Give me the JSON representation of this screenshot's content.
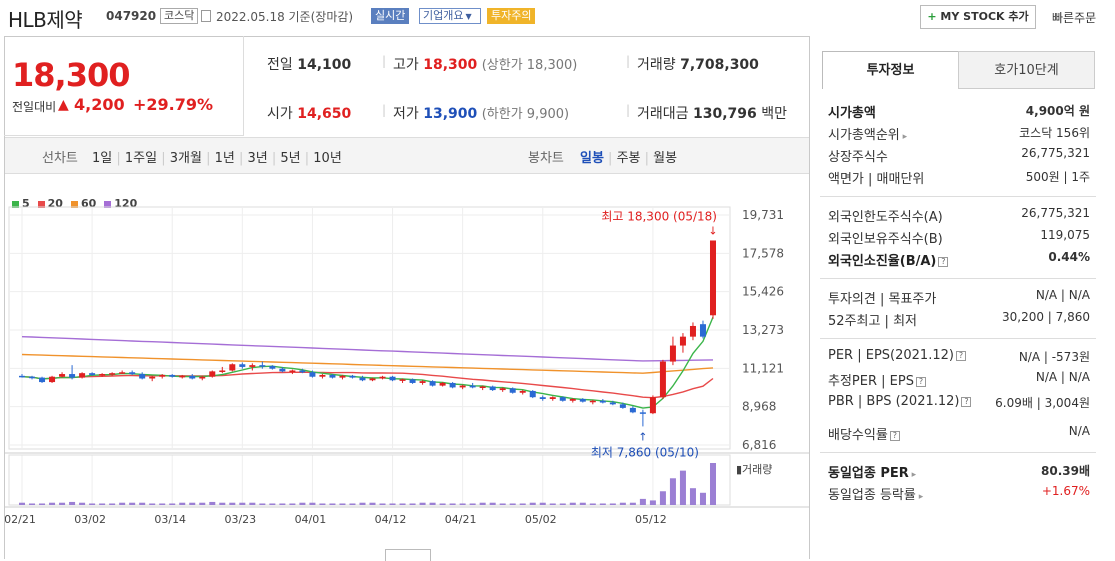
{
  "header": {
    "company_name": "HLB제약",
    "stock_code": "047920",
    "market_tag": "코스닥",
    "date_text": "2022.05.18 기준(장마감)",
    "realtime_tag": "실시간",
    "company_overview_tag": "기업개요",
    "warning_tag": "투자주의",
    "mystock_label": "MY STOCK 추가",
    "quick_order_label": "빠른주문"
  },
  "price": {
    "current": "18,300",
    "change_label": "전일대비",
    "change": "4,200",
    "change_pct": "+29.79%",
    "prev_close_label": "전일",
    "prev_close": "14,100",
    "open_label": "시가",
    "open": "14,650",
    "high_label": "고가",
    "high": "18,300",
    "upper_limit": "(상한가 18,300)",
    "low_label": "저가",
    "low": "13,900",
    "lower_limit": "(하한가 9,900)",
    "volume_label": "거래량",
    "volume": "7,708,300",
    "amount_label": "거래대금",
    "amount": "130,796",
    "amount_unit": "백만"
  },
  "toolbar": {
    "line_chart_label": "선차트",
    "periods": [
      "1일",
      "1주일",
      "3개월",
      "1년",
      "3년",
      "5년",
      "10년"
    ],
    "candle_label": "봉차트",
    "candle_periods": [
      "일봉",
      "주봉",
      "월봉"
    ],
    "selected_candle": "일봉"
  },
  "legend": [
    {
      "label": "5",
      "color": "#3bb54a"
    },
    {
      "label": "20",
      "color": "#e84a4a"
    },
    {
      "label": "60",
      "color": "#f0922b"
    },
    {
      "label": "120",
      "color": "#a56ed6"
    }
  ],
  "chart_data": {
    "type": "candlestick",
    "y_ticks": [
      "19,731",
      "17,578",
      "15,426",
      "13,273",
      "11,121",
      "8,968",
      "6,816"
    ],
    "ylim": [
      6816,
      19731
    ],
    "x_ticks": [
      "02/21",
      "03/02",
      "03/14",
      "03/23",
      "04/01",
      "04/12",
      "04/21",
      "05/02",
      "05/12"
    ],
    "high_annotation": "최고 18,300 (05/18)",
    "low_annotation": "최저 7,860 (05/10)",
    "volume_label": "거래량",
    "up_color": "#e02020",
    "down_color": "#2a6ad4",
    "candles": [
      [
        10700,
        10800,
        10600,
        10650
      ],
      [
        10650,
        10700,
        10500,
        10600
      ],
      [
        10600,
        10650,
        10300,
        10350
      ],
      [
        10350,
        10700,
        10300,
        10650
      ],
      [
        10650,
        10900,
        10600,
        10800
      ],
      [
        10800,
        11300,
        10500,
        10600
      ],
      [
        10600,
        10900,
        10550,
        10850
      ],
      [
        10850,
        10900,
        10700,
        10750
      ],
      [
        10750,
        10850,
        10650,
        10800
      ],
      [
        10800,
        10900,
        10700,
        10850
      ],
      [
        10850,
        11000,
        10800,
        10900
      ],
      [
        10900,
        11000,
        10750,
        10800
      ],
      [
        10800,
        10900,
        10500,
        10550
      ],
      [
        10550,
        10700,
        10400,
        10650
      ],
      [
        10650,
        10800,
        10550,
        10750
      ],
      [
        10750,
        10800,
        10600,
        10650
      ],
      [
        10650,
        10750,
        10550,
        10700
      ],
      [
        10700,
        10800,
        10500,
        10550
      ],
      [
        10550,
        10700,
        10450,
        10650
      ],
      [
        10650,
        11000,
        10600,
        10950
      ],
      [
        10950,
        11200,
        10850,
        11000
      ],
      [
        11000,
        11400,
        10950,
        11350
      ],
      [
        11350,
        11450,
        11100,
        11200
      ],
      [
        11200,
        11400,
        11000,
        11300
      ],
      [
        11300,
        11500,
        11100,
        11250
      ],
      [
        11250,
        11300,
        11050,
        11100
      ],
      [
        11100,
        11200,
        10900,
        10950
      ],
      [
        10950,
        11050,
        10800,
        11000
      ],
      [
        11000,
        11100,
        10850,
        10900
      ],
      [
        10900,
        11000,
        10600,
        10650
      ],
      [
        10650,
        10800,
        10550,
        10750
      ],
      [
        10750,
        10800,
        10550,
        10600
      ],
      [
        10600,
        10750,
        10500,
        10700
      ],
      [
        10700,
        10750,
        10550,
        10600
      ],
      [
        10600,
        10700,
        10400,
        10450
      ],
      [
        10450,
        10600,
        10400,
        10550
      ],
      [
        10550,
        10700,
        10500,
        10650
      ],
      [
        10650,
        10700,
        10400,
        10450
      ],
      [
        10450,
        10550,
        10300,
        10500
      ],
      [
        10500,
        10550,
        10250,
        10300
      ],
      [
        10300,
        10450,
        10200,
        10400
      ],
      [
        10400,
        10450,
        10100,
        10150
      ],
      [
        10150,
        10350,
        10100,
        10300
      ],
      [
        10300,
        10350,
        10000,
        10050
      ],
      [
        10050,
        10200,
        9950,
        10150
      ],
      [
        10150,
        10300,
        10000,
        10050
      ],
      [
        10050,
        10150,
        9900,
        10100
      ],
      [
        10100,
        10150,
        9850,
        9900
      ],
      [
        9900,
        10050,
        9800,
        10000
      ],
      [
        10000,
        10050,
        9700,
        9750
      ],
      [
        9750,
        9900,
        9650,
        9850
      ],
      [
        9850,
        9900,
        9450,
        9500
      ],
      [
        9500,
        9600,
        9300,
        9400
      ],
      [
        9400,
        9550,
        9300,
        9500
      ],
      [
        9500,
        9550,
        9250,
        9300
      ],
      [
        9300,
        9450,
        9200,
        9400
      ],
      [
        9400,
        9450,
        9200,
        9250
      ],
      [
        9250,
        9350,
        9100,
        9300
      ],
      [
        9300,
        9400,
        9150,
        9200
      ],
      [
        9200,
        9300,
        9050,
        9100
      ],
      [
        9100,
        9200,
        8850,
        8900
      ],
      [
        8900,
        9000,
        8600,
        8650
      ],
      [
        8650,
        8800,
        7860,
        8600
      ],
      [
        8600,
        9600,
        8550,
        9500
      ],
      [
        9500,
        11600,
        9400,
        11500
      ],
      [
        11500,
        12900,
        11300,
        12400
      ],
      [
        12400,
        13100,
        12000,
        12900
      ],
      [
        12900,
        13700,
        12700,
        13500
      ],
      [
        13600,
        13800,
        12800,
        12900
      ],
      [
        14100,
        18300,
        13900,
        18300
      ]
    ],
    "volumes": [
      3,
      2,
      2,
      3,
      3,
      4,
      3,
      2,
      2,
      2,
      3,
      3,
      3,
      2,
      2,
      2,
      3,
      3,
      3,
      4,
      3,
      3,
      3,
      3,
      2,
      2,
      2,
      2,
      3,
      3,
      2,
      2,
      2,
      2,
      3,
      3,
      2,
      2,
      2,
      2,
      3,
      3,
      2,
      2,
      2,
      2,
      3,
      3,
      2,
      2,
      2,
      3,
      3,
      2,
      2,
      3,
      3,
      2,
      2,
      2,
      3,
      3,
      8,
      6,
      18,
      35,
      45,
      22,
      16,
      55
    ]
  },
  "right_panel": {
    "tab_investment": "투자정보",
    "tab_quote": "호가10단계",
    "rows1": [
      {
        "k": "시가총액",
        "v": "4,900억 원",
        "bold": true
      },
      {
        "k": "시가총액순위",
        "v": "코스닥 156위",
        "arrow": true
      },
      {
        "k": "상장주식수",
        "v": "26,775,321"
      },
      {
        "k": "액면가 | 매매단위",
        "v": "500원 | 1주"
      }
    ],
    "rows2": [
      {
        "k": "외국인한도주식수(A)",
        "v": "26,775,321"
      },
      {
        "k": "외국인보유주식수(B)",
        "v": "119,075"
      },
      {
        "k": "외국인소진율(B/A)",
        "v": "0.44%",
        "bold": true,
        "help": true
      }
    ],
    "rows3": [
      {
        "k": "투자의견 | 목표주가",
        "v": "N/A | N/A"
      },
      {
        "k": "52주최고 | 최저",
        "v": "30,200 | 7,860"
      }
    ],
    "rows4": [
      {
        "k": "PER | EPS(2021.12)",
        "v": "N/A | -573원",
        "help": true
      },
      {
        "k": "추정PER | EPS",
        "v": "N/A | N/A",
        "help": true
      },
      {
        "k": "PBR | BPS (2021.12)",
        "v": "6.09배 | 3,004원",
        "help": true
      },
      {
        "k": "배당수익률",
        "v": "N/A",
        "help": true
      }
    ],
    "rows5": [
      {
        "k": "동일업종 PER",
        "v": "80.39배",
        "bold": true,
        "arrow": true
      },
      {
        "k": "동일업종 등락률",
        "v": "+1.67%",
        "red": true,
        "arrow": true
      }
    ]
  }
}
